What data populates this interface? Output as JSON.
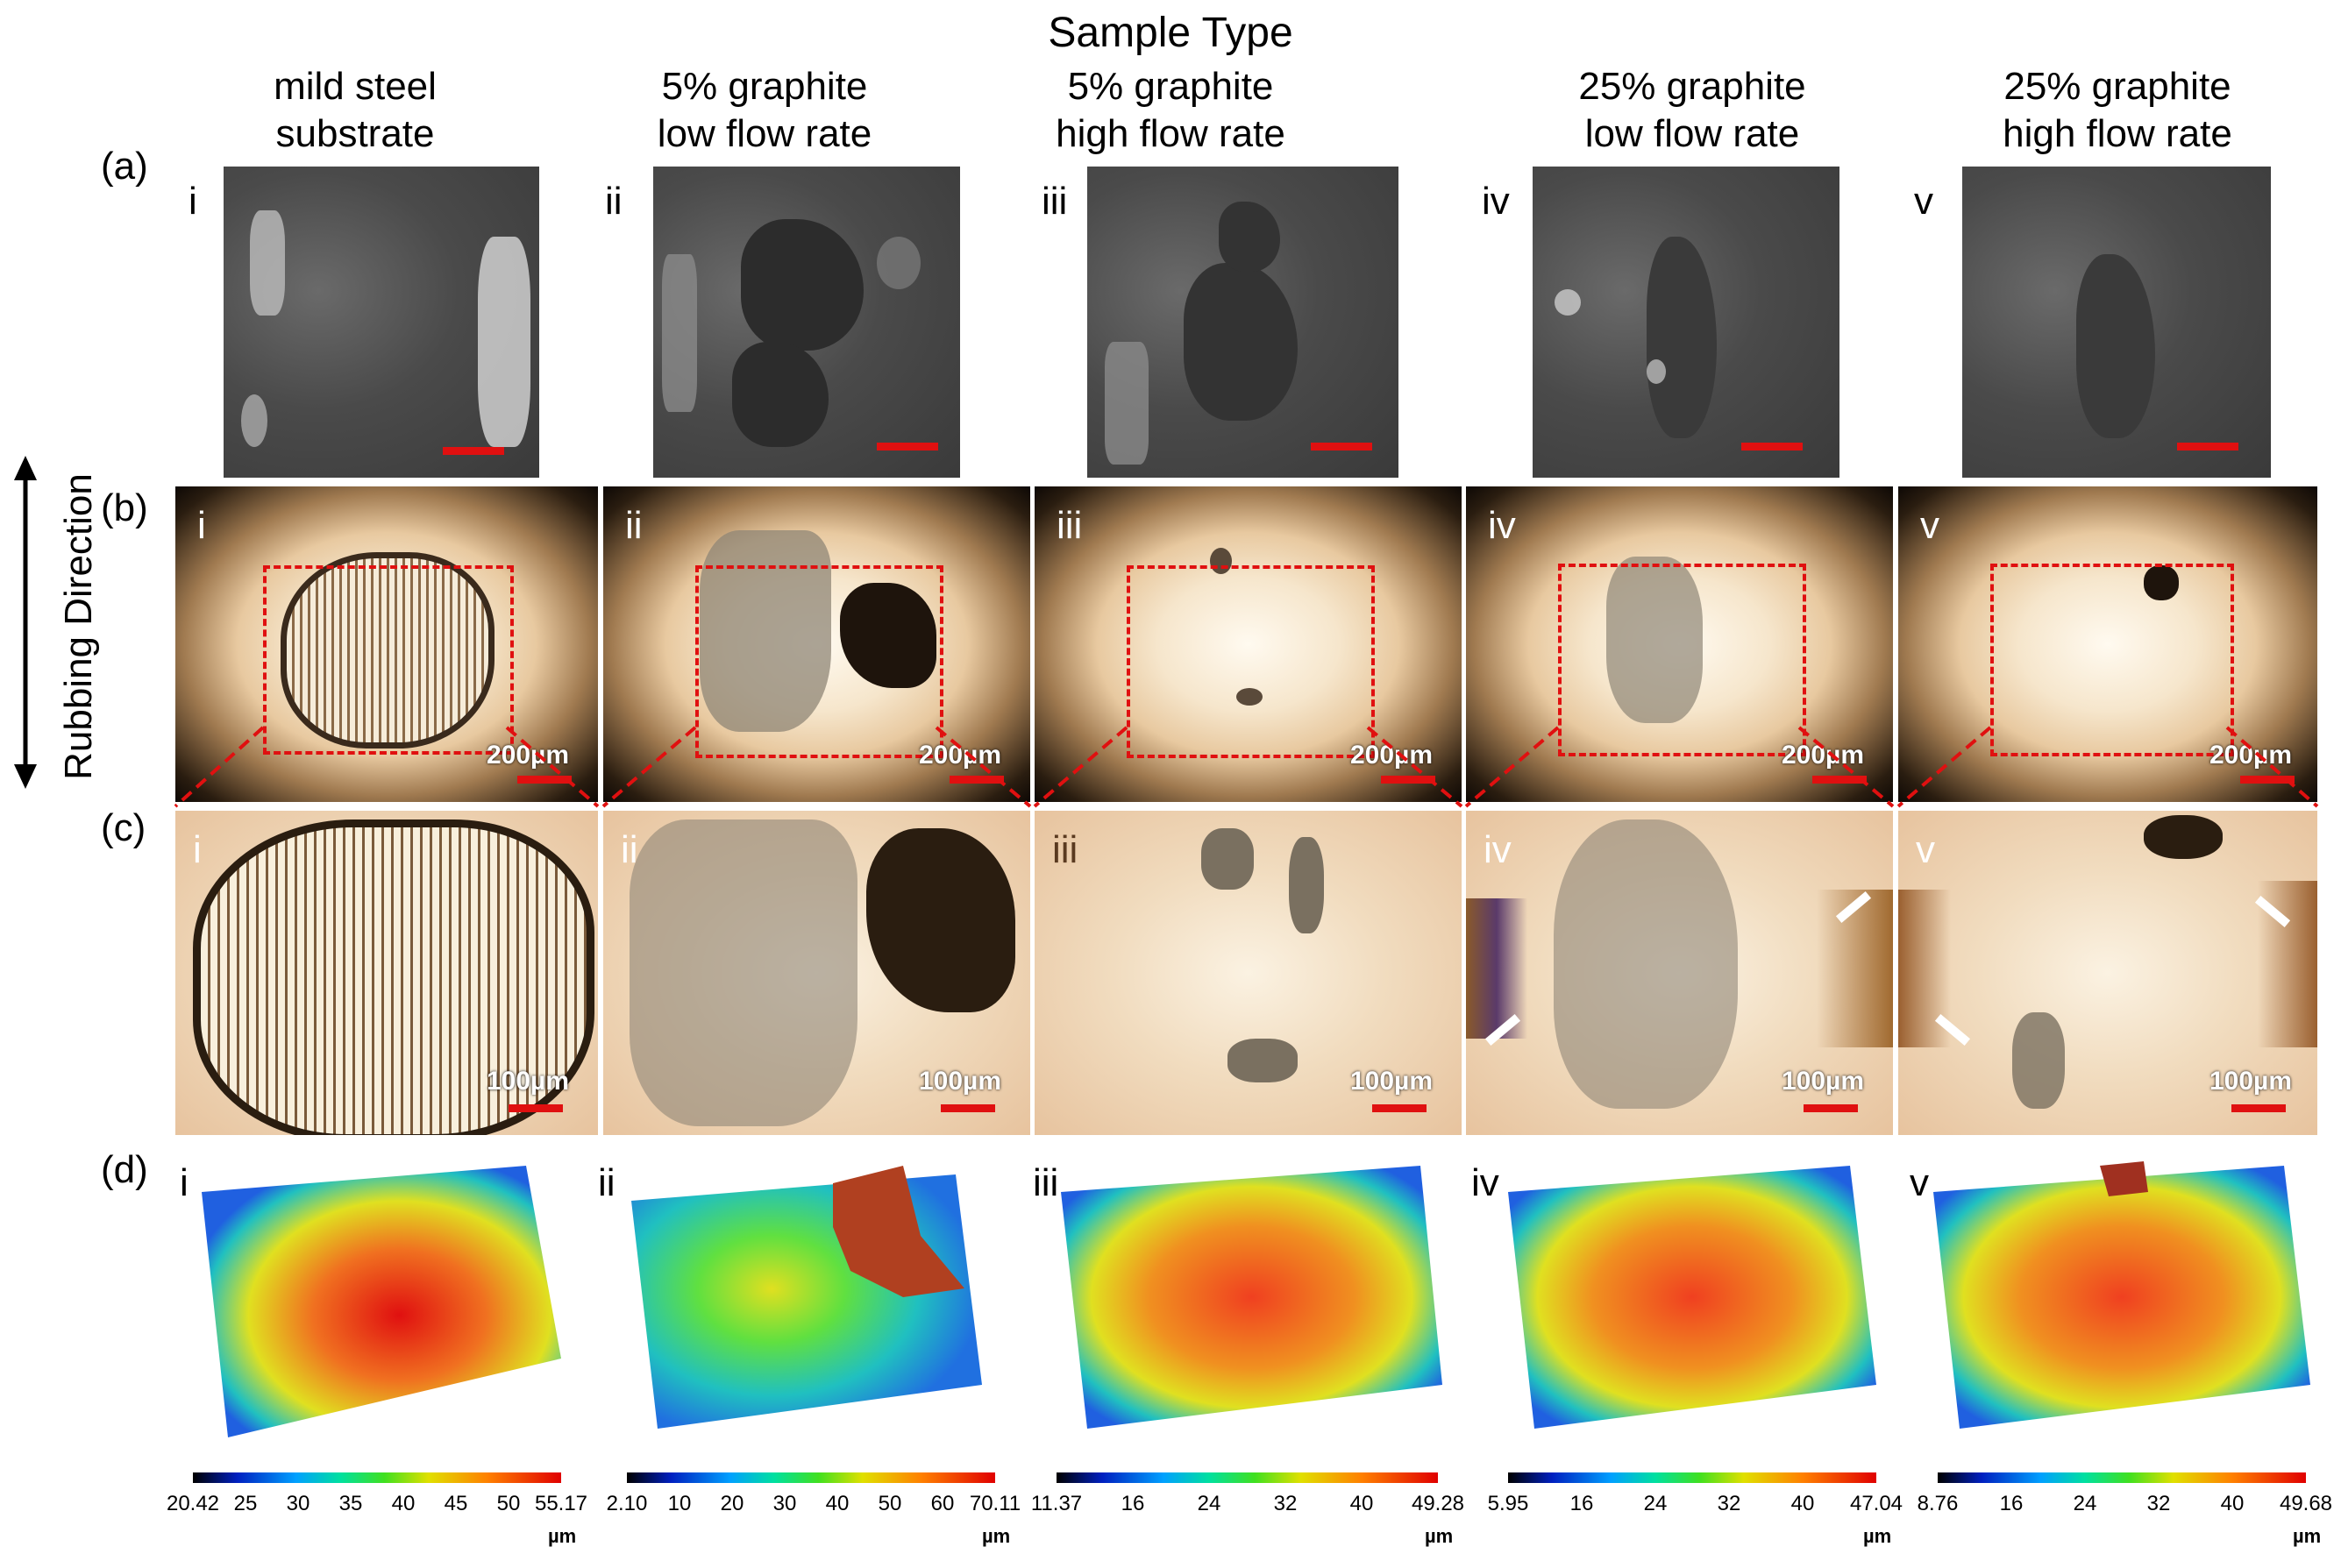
{
  "header": {
    "title": "Sample Type",
    "side_label": "Rubbing Direction"
  },
  "columns": [
    {
      "line1": "mild steel",
      "line2": "substrate",
      "roman": "i"
    },
    {
      "line1": "5% graphite",
      "line2": "low flow rate",
      "roman": "ii"
    },
    {
      "line1": "5% graphite",
      "line2": "high flow rate",
      "roman": "iii"
    },
    {
      "line1": "25% graphite",
      "line2": "low flow rate",
      "roman": "iv"
    },
    {
      "line1": "25% graphite",
      "line2": "high flow rate",
      "roman": "v"
    }
  ],
  "rows": {
    "a": "(a)",
    "b": "(b)",
    "c": "(c)",
    "d": "(d)"
  },
  "scale": {
    "b": "200µm",
    "c": "100µm"
  },
  "colorbars": [
    {
      "ticks": [
        "20.42",
        "25",
        "30",
        "35",
        "40",
        "45",
        "50",
        "55.17"
      ],
      "unit": "µm"
    },
    {
      "ticks": [
        "2.10",
        "10",
        "20",
        "30",
        "40",
        "50",
        "60",
        "70.11"
      ],
      "unit": "µm"
    },
    {
      "ticks": [
        "11.37",
        "16",
        "24",
        "32",
        "40",
        "49.28"
      ],
      "unit": "µm"
    },
    {
      "ticks": [
        "5.95",
        "16",
        "24",
        "32",
        "40",
        "47.04"
      ],
      "unit": "µm"
    },
    {
      "ticks": [
        "8.76",
        "16",
        "24",
        "32",
        "40",
        "49.68"
      ],
      "unit": "µm"
    }
  ],
  "colors": {
    "scalebar": "#e01010",
    "arrow": "#ffffff"
  }
}
